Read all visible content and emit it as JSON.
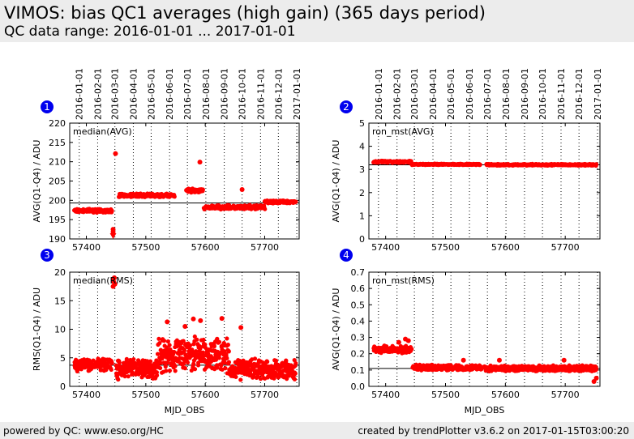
{
  "header": {
    "title": "VIMOS: bias QC1 averages (high gain) (365 days period)",
    "subtitle": "QC data range: 2016-01-01 ... 2017-01-01"
  },
  "footer": {
    "left": "powered by QC: www.eso.org/HC",
    "right": "created by trendPlotter v3.6.2 on 2017-01-15T03:00:20"
  },
  "colors": {
    "points": "#ff0000",
    "badge": "#0000ee",
    "reference_line": "#000000"
  },
  "chart_data": [
    {
      "id": "1",
      "type": "scatter",
      "label": "median(AVG)",
      "xlabel": "",
      "ylabel": "AVG(Q1-Q4) / ADU",
      "xlim": [
        57372,
        57758
      ],
      "ylim": [
        190,
        220
      ],
      "yticks": [
        190,
        195,
        200,
        205,
        210,
        215,
        220
      ],
      "xticks": [
        57400,
        57500,
        57600,
        57700
      ],
      "top_date_ticks": [
        "2016-01-01",
        "2016-02-01",
        "2016-03-01",
        "2016-04-01",
        "2016-05-01",
        "2016-06-01",
        "2016-07-01",
        "2016-08-01",
        "2016-09-01",
        "2016-10-01",
        "2016-11-01",
        "2016-12-01",
        "2017-01-01"
      ],
      "top_date_mjd": [
        57388,
        57419,
        57448,
        57479,
        57509,
        57540,
        57570,
        57601,
        57632,
        57662,
        57693,
        57723,
        57754
      ],
      "reference_line": 199.3,
      "series": [
        {
          "x0": 57380,
          "x1": 57443,
          "y": 197.3,
          "spread": 0.5
        },
        {
          "x0": 57455,
          "x1": 57548,
          "y": 201.3,
          "spread": 0.5
        },
        {
          "x0": 57568,
          "x1": 57596,
          "y": 202.5,
          "spread": 0.6
        },
        {
          "x0": 57598,
          "x1": 57700,
          "y": 198.2,
          "spread": 0.6
        },
        {
          "x0": 57700,
          "x1": 57752,
          "y": 199.6,
          "spread": 0.4
        }
      ],
      "outliers": [
        [
          57449,
          212.1
        ],
        [
          57591,
          209.9
        ],
        [
          57662,
          202.8
        ],
        [
          57445,
          192.5
        ],
        [
          57445,
          191.8
        ]
      ],
      "arrow": {
        "x": 57445,
        "y": 190
      }
    },
    {
      "id": "2",
      "type": "scatter",
      "label": "ron_mst(AVG)",
      "xlabel": "",
      "ylabel": "AVG(Q1-Q4) / ADU",
      "xlim": [
        57372,
        57758
      ],
      "ylim": [
        0,
        5
      ],
      "yticks": [
        0,
        1,
        2,
        3,
        4,
        5
      ],
      "xticks": [
        57400,
        57500,
        57600,
        57700
      ],
      "top_date_ticks": [
        "2016-01-01",
        "2016-02-01",
        "2016-03-01",
        "2016-04-01",
        "2016-05-01",
        "2016-06-01",
        "2016-07-01",
        "2016-08-01",
        "2016-09-01",
        "2016-10-01",
        "2016-11-01",
        "2016-12-01",
        "2017-01-01"
      ],
      "top_date_mjd": [
        57388,
        57419,
        57448,
        57479,
        57509,
        57540,
        57570,
        57601,
        57632,
        57662,
        57693,
        57723,
        57754
      ],
      "reference_line": 3.2,
      "series": [
        {
          "x0": 57380,
          "x1": 57443,
          "y": 3.33,
          "spread": 0.05
        },
        {
          "x0": 57443,
          "x1": 57558,
          "y": 3.22,
          "spread": 0.03
        },
        {
          "x0": 57568,
          "x1": 57752,
          "y": 3.2,
          "spread": 0.04
        }
      ],
      "outliers": [],
      "arrow": null
    },
    {
      "id": "3",
      "type": "scatter",
      "label": "median(RMS)",
      "xlabel": "MJD_OBS",
      "ylabel": "RMS(Q1-Q4) / ADU",
      "xlim": [
        57372,
        57758
      ],
      "ylim": [
        0,
        20
      ],
      "yticks": [
        0,
        5,
        10,
        15,
        20
      ],
      "xticks": [
        57400,
        57500,
        57600,
        57700
      ],
      "top_date_ticks": [],
      "top_date_mjd": [],
      "reference_line": 3.7,
      "series": [
        {
          "x0": 57380,
          "x1": 57443,
          "y": 3.8,
          "spread": 1.2
        },
        {
          "x0": 57450,
          "x1": 57520,
          "y": 3.0,
          "spread": 2.0
        },
        {
          "x0": 57520,
          "x1": 57640,
          "y": 5.5,
          "spread": 3.5
        },
        {
          "x0": 57640,
          "x1": 57752,
          "y": 3.0,
          "spread": 2.0
        }
      ],
      "outliers": [
        [
          57445,
          18.8
        ],
        [
          57446,
          18.3
        ],
        [
          57447,
          19.0
        ],
        [
          57448,
          17.9
        ],
        [
          57445,
          17.5
        ],
        [
          57536,
          11.3
        ],
        [
          57580,
          11.8
        ],
        [
          57592,
          11.5
        ],
        [
          57628,
          11.9
        ],
        [
          57660,
          10.3
        ],
        [
          57566,
          10.5
        ]
      ],
      "arrow": null
    },
    {
      "id": "4",
      "type": "scatter",
      "label": "ron_mst(RMS)",
      "xlabel": "MJD_OBS",
      "ylabel": "AVG(Q1-Q4) / ADU",
      "xlim": [
        57372,
        57758
      ],
      "ylim": [
        0,
        0.7
      ],
      "yticks": [
        0.0,
        0.1,
        0.2,
        0.3,
        0.4,
        0.5,
        0.6,
        0.7
      ],
      "xticks": [
        57400,
        57500,
        57600,
        57700
      ],
      "top_date_ticks": [],
      "top_date_mjd": [],
      "reference_line": 0.11,
      "series": [
        {
          "x0": 57380,
          "x1": 57443,
          "y": 0.225,
          "spread": 0.025
        },
        {
          "x0": 57445,
          "x1": 57560,
          "y": 0.115,
          "spread": 0.02
        },
        {
          "x0": 57565,
          "x1": 57752,
          "y": 0.11,
          "spread": 0.02
        }
      ],
      "outliers": [
        [
          57433,
          0.29
        ],
        [
          57438,
          0.28
        ],
        [
          57422,
          0.27
        ],
        [
          57748,
          0.03
        ],
        [
          57752,
          0.05
        ],
        [
          57530,
          0.16
        ],
        [
          57590,
          0.16
        ],
        [
          57698,
          0.16
        ]
      ],
      "arrow": null
    }
  ]
}
